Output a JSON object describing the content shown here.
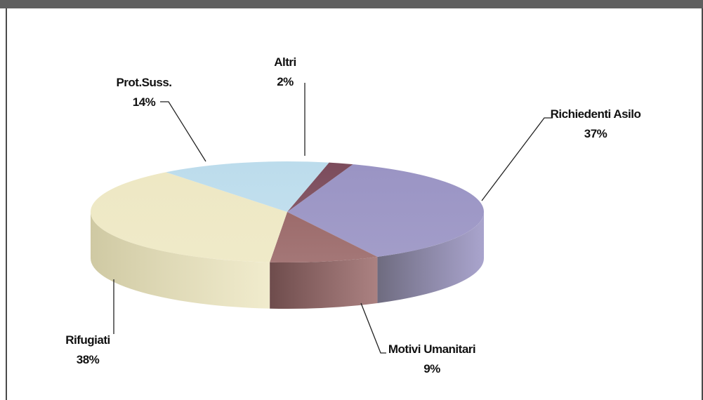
{
  "chart_data": {
    "type": "pie",
    "title": "",
    "slices": [
      {
        "label": "Richiedenti Asilo",
        "value": 37,
        "display": "37%",
        "color": "#9a94c4",
        "side": "#6e6b7f"
      },
      {
        "label": "Motivi Umanitari",
        "value": 9,
        "display": "9%",
        "color": "#9c6b6b",
        "side": "#6e4c4c"
      },
      {
        "label": "Rifugiati",
        "value": 38,
        "display": "38%",
        "color": "#eee8c4",
        "side": "#cfc9a3"
      },
      {
        "label": "Prot.Suss.",
        "value": 14,
        "display": "14%",
        "color": "#bcdcec",
        "side": "#9fbccc"
      },
      {
        "label": "Altri",
        "value": 2,
        "display": "2%",
        "color": "#7b4b5b",
        "side": "#5a3641"
      }
    ],
    "legend": "none",
    "style": "3d-pie"
  }
}
